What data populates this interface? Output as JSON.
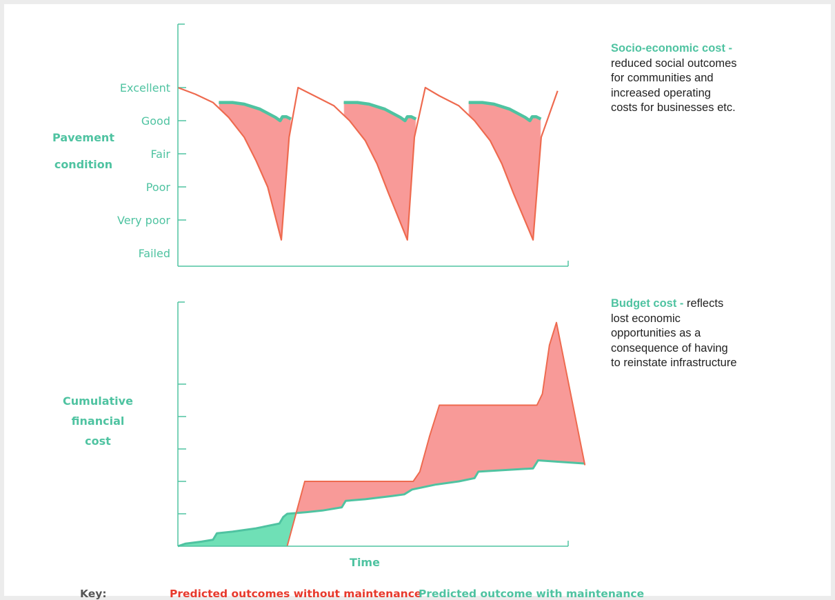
{
  "colors": {
    "without_maintenance": "#ee6a4f",
    "with_maintenance": "#4fc3a1",
    "gap_fill": "#f89a98",
    "gain_fill": "#6fe0b6"
  },
  "annotations": {
    "socio": {
      "title": "Socio-economic cost -",
      "body": [
        "reduced social outcomes",
        "for communities and",
        "increased operating",
        "costs for businesses etc."
      ]
    },
    "budget": {
      "title": "Budget cost -",
      "title_suffix": "reflects",
      "body": [
        "lost economic",
        "opportunities as a",
        "consequence of having",
        "to reinstate infrastructure"
      ]
    }
  },
  "key": {
    "label": "Key:",
    "without": "Predicted outcomes without maintenance",
    "with": "Predicted outcome with maintenance"
  },
  "chart_data": [
    {
      "type": "line",
      "ylabel": "Pavement condition",
      "ylabel_lines": [
        "Pavement",
        "condition"
      ],
      "y_categories": [
        "Failed",
        "Very poor",
        "Poor",
        "Fair",
        "Good",
        "Excellent"
      ],
      "x_range": [
        0,
        100
      ],
      "y_range": [
        0,
        5
      ],
      "series": [
        {
          "name": "Predicted outcomes without maintenance",
          "points": [
            [
              0,
              5
            ],
            [
              4.5,
              4.8
            ],
            [
              9,
              4.55
            ],
            [
              13,
              4.1
            ],
            [
              17,
              3.5
            ],
            [
              20,
              2.8
            ],
            [
              23,
              2
            ],
            [
              26.5,
              0.4
            ],
            [
              28.5,
              3.5
            ],
            [
              30.8,
              5
            ],
            [
              35,
              4.75
            ],
            [
              40,
              4.45
            ],
            [
              44,
              4
            ],
            [
              48,
              3.4
            ],
            [
              51,
              2.7
            ],
            [
              54,
              1.8
            ],
            [
              58.8,
              0.4
            ],
            [
              60.6,
              3.5
            ],
            [
              63.4,
              5
            ],
            [
              67,
              4.75
            ],
            [
              72,
              4.45
            ],
            [
              76,
              4
            ],
            [
              80,
              3.4
            ],
            [
              83,
              2.7
            ],
            [
              86,
              1.8
            ],
            [
              91,
              0.4
            ],
            [
              93.1,
              3.5
            ],
            [
              97.3,
              4.9
            ]
          ]
        },
        {
          "name": "Predicted outcome with maintenance",
          "segments": [
            [
              [
                10.5,
                4.55
              ],
              [
                14,
                4.55
              ],
              [
                17,
                4.5
              ],
              [
                21,
                4.35
              ],
              [
                25,
                4.1
              ],
              [
                26.2,
                4.0
              ],
              [
                26.8,
                4.12
              ],
              [
                27.8,
                4.12
              ],
              [
                29,
                4.05
              ]
            ],
            [
              [
                42.5,
                4.55
              ],
              [
                46,
                4.55
              ],
              [
                49,
                4.5
              ],
              [
                53,
                4.35
              ],
              [
                57,
                4.1
              ],
              [
                58.2,
                4.0
              ],
              [
                58.8,
                4.12
              ],
              [
                59.8,
                4.12
              ],
              [
                61,
                4.05
              ]
            ],
            [
              [
                74.5,
                4.55
              ],
              [
                78,
                4.55
              ],
              [
                81,
                4.5
              ],
              [
                85,
                4.35
              ],
              [
                89,
                4.1
              ],
              [
                90.2,
                4.0
              ],
              [
                90.8,
                4.12
              ],
              [
                91.8,
                4.12
              ],
              [
                93,
                4.05
              ]
            ]
          ]
        }
      ]
    },
    {
      "type": "area",
      "xlabel": "Time",
      "ylabel": "Cumulative financial cost",
      "ylabel_lines": [
        "Cumulative",
        "financial",
        "cost"
      ],
      "x_range": [
        0,
        100
      ],
      "y_range": [
        0,
        7.3
      ],
      "y_ticks": [
        1,
        2,
        3,
        4,
        5
      ],
      "series": [
        {
          "name": "Predicted outcomes without maintenance",
          "points": [
            [
              0,
              0
            ],
            [
              28,
              0
            ],
            [
              32.5,
              2
            ],
            [
              60.3,
              2
            ],
            [
              62,
              2.3
            ],
            [
              64.5,
              3.4
            ],
            [
              67,
              4.35
            ],
            [
              92,
              4.35
            ],
            [
              93.4,
              4.7
            ],
            [
              95.2,
              6.2
            ],
            [
              97,
              6.9
            ],
            [
              104.3,
              2.5
            ]
          ]
        },
        {
          "name": "Predicted outcome with maintenance",
          "points": [
            [
              0,
              0
            ],
            [
              2,
              0.08
            ],
            [
              6,
              0.14
            ],
            [
              9,
              0.2
            ],
            [
              10,
              0.4
            ],
            [
              14,
              0.45
            ],
            [
              20,
              0.55
            ],
            [
              26,
              0.7
            ],
            [
              27,
              0.9
            ],
            [
              28,
              1
            ],
            [
              33,
              1.05
            ],
            [
              37,
              1.1
            ],
            [
              42,
              1.2
            ],
            [
              43,
              1.4
            ],
            [
              48,
              1.45
            ],
            [
              55,
              1.55
            ],
            [
              58,
              1.6
            ],
            [
              60,
              1.75
            ],
            [
              66,
              1.9
            ],
            [
              72,
              2
            ],
            [
              76,
              2.1
            ],
            [
              77,
              2.3
            ],
            [
              84,
              2.35
            ],
            [
              91,
              2.4
            ],
            [
              92.3,
              2.65
            ],
            [
              98,
              2.6
            ],
            [
              104.3,
              2.55
            ]
          ]
        }
      ]
    }
  ]
}
